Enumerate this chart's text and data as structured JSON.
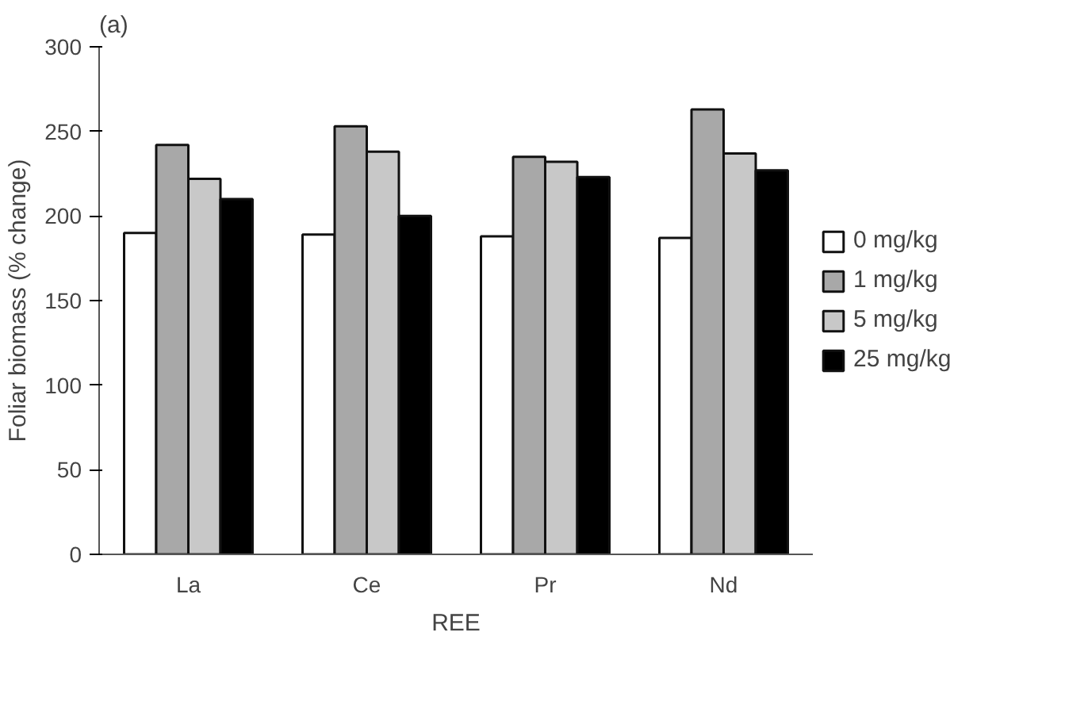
{
  "chart_data": {
    "type": "bar",
    "title": "(a)",
    "xlabel": "REE",
    "ylabel": "Foliar biomass (% change)",
    "categories": [
      "La",
      "Ce",
      "Pr",
      "Nd"
    ],
    "series": [
      {
        "name": "0 mg/kg",
        "color": "#ffffff",
        "values": [
          190,
          189,
          188,
          187
        ]
      },
      {
        "name": "1 mg/kg",
        "color": "#a8a8a8",
        "values": [
          242,
          253,
          235,
          263
        ]
      },
      {
        "name": "5 mg/kg",
        "color": "#c8c8c8",
        "values": [
          222,
          238,
          232,
          237
        ]
      },
      {
        "name": "25 mg/kg",
        "color": "#000000",
        "values": [
          210,
          200,
          223,
          227
        ]
      }
    ],
    "ylim": [
      0,
      300
    ],
    "yticks": [
      0,
      50,
      100,
      150,
      200,
      250,
      300
    ],
    "grid": false,
    "legend": "right"
  }
}
